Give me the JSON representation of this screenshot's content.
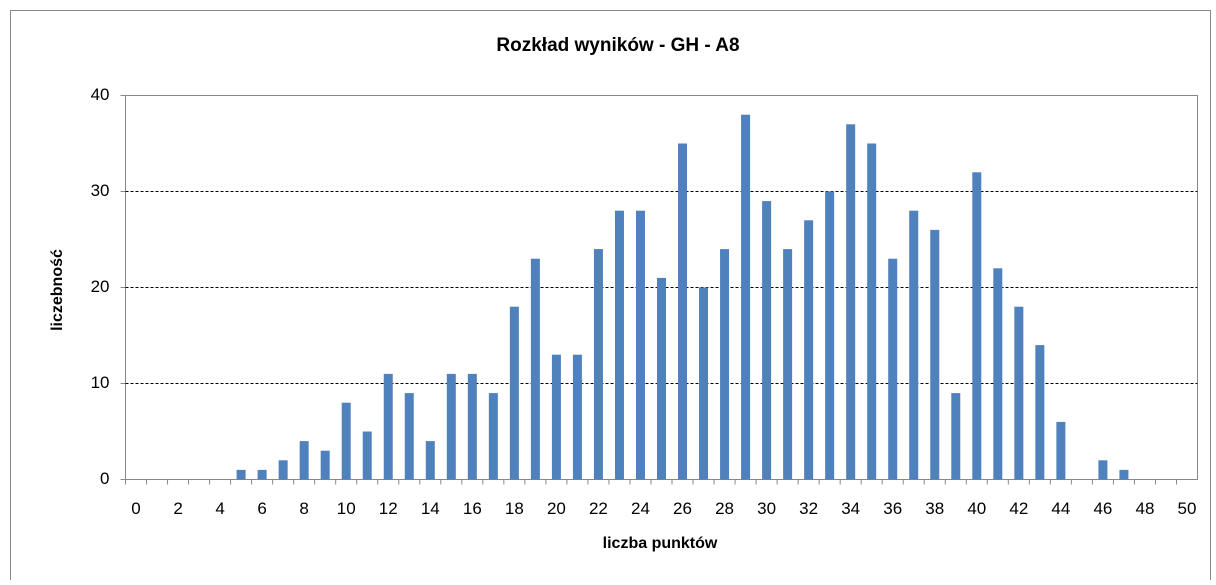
{
  "chart_data": {
    "type": "bar",
    "title": "Rozkład wyników - GH - A8",
    "x_label": "liczba punktów",
    "y_label": "liczebność",
    "categories": [
      "0",
      null,
      "2",
      null,
      "4",
      null,
      "6",
      null,
      "8",
      null,
      "10",
      null,
      "12",
      null,
      "14",
      null,
      "16",
      null,
      "18",
      null,
      "20",
      null,
      "22",
      null,
      "24",
      null,
      "26",
      null,
      "28",
      null,
      "30",
      null,
      "32",
      null,
      "34",
      null,
      "36",
      null,
      "38",
      null,
      "40",
      null,
      "42",
      null,
      "44",
      null,
      "46",
      null,
      "48",
      null,
      "50"
    ],
    "values": [
      0,
      0,
      0,
      0,
      0,
      1,
      1,
      2,
      4,
      3,
      8,
      5,
      11,
      9,
      4,
      11,
      11,
      9,
      18,
      23,
      13,
      13,
      24,
      28,
      28,
      21,
      35,
      20,
      24,
      38,
      29,
      24,
      27,
      30,
      37,
      35,
      23,
      28,
      26,
      9,
      32,
      22,
      18,
      14,
      6,
      0,
      2,
      1,
      0,
      0,
      0
    ],
    "color": "#4f81bd",
    "ylim": [
      0,
      40
    ],
    "yticks": [
      0,
      10,
      20,
      30,
      40
    ],
    "grid": true
  }
}
